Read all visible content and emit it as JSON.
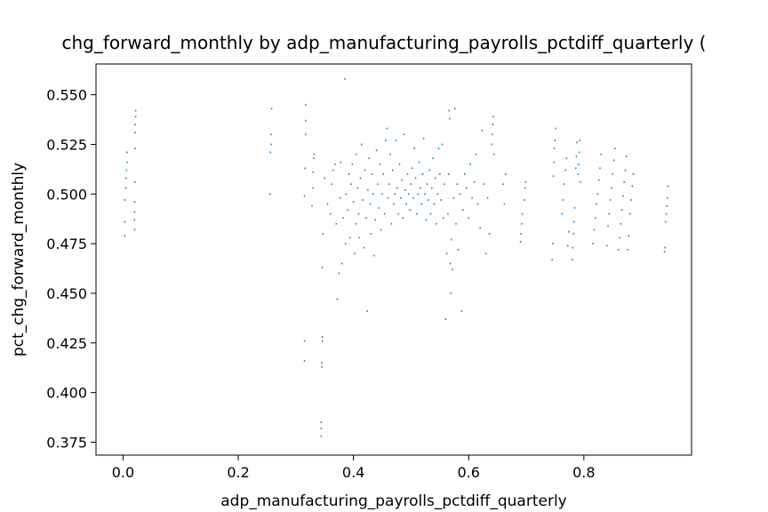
{
  "chart_data": {
    "type": "scatter",
    "title": "chg_forward_monthly by adp_manufacturing_payrolls_pctdiff_quarterly (",
    "xlabel": "adp_manufacturing_payrolls_pctdiff_quarterly",
    "ylabel": "pct_chg_forward_monthly",
    "xlim": [
      -0.047,
      0.987
    ],
    "ylim": [
      0.3685,
      0.5655
    ],
    "xticks": [
      0.0,
      0.2,
      0.4,
      0.6,
      0.8
    ],
    "xtick_labels": [
      "0.0",
      "0.2",
      "0.4",
      "0.6",
      "0.8"
    ],
    "yticks": [
      0.375,
      0.4,
      0.425,
      0.45,
      0.475,
      0.5,
      0.525,
      0.55
    ],
    "ytick_labels": [
      "0.375",
      "0.400",
      "0.425",
      "0.450",
      "0.475",
      "0.500",
      "0.525",
      "0.550"
    ],
    "grid": false,
    "marker_color": "#1f77b4",
    "points": [
      [
        0.003,
        0.479
      ],
      [
        0.003,
        0.486
      ],
      [
        0.003,
        0.497
      ],
      [
        0.005,
        0.503
      ],
      [
        0.005,
        0.508
      ],
      [
        0.006,
        0.512
      ],
      [
        0.007,
        0.516
      ],
      [
        0.007,
        0.521
      ],
      [
        0.02,
        0.482
      ],
      [
        0.02,
        0.487
      ],
      [
        0.02,
        0.491
      ],
      [
        0.02,
        0.496
      ],
      [
        0.021,
        0.506
      ],
      [
        0.021,
        0.523
      ],
      [
        0.021,
        0.531
      ],
      [
        0.021,
        0.535
      ],
      [
        0.022,
        0.539
      ],
      [
        0.022,
        0.542
      ],
      [
        0.255,
        0.5
      ],
      [
        0.256,
        0.521
      ],
      [
        0.257,
        0.525
      ],
      [
        0.257,
        0.53
      ],
      [
        0.258,
        0.543
      ],
      [
        0.315,
        0.416
      ],
      [
        0.315,
        0.426
      ],
      [
        0.315,
        0.499
      ],
      [
        0.316,
        0.513
      ],
      [
        0.317,
        0.53
      ],
      [
        0.317,
        0.537
      ],
      [
        0.317,
        0.545
      ],
      [
        0.328,
        0.494
      ],
      [
        0.33,
        0.503
      ],
      [
        0.33,
        0.511
      ],
      [
        0.331,
        0.518
      ],
      [
        0.332,
        0.52
      ],
      [
        0.344,
        0.378
      ],
      [
        0.344,
        0.382
      ],
      [
        0.344,
        0.385
      ],
      [
        0.345,
        0.413
      ],
      [
        0.345,
        0.415
      ],
      [
        0.346,
        0.426
      ],
      [
        0.346,
        0.428
      ],
      [
        0.346,
        0.463
      ],
      [
        0.347,
        0.48
      ],
      [
        0.35,
        0.508
      ],
      [
        0.355,
        0.495
      ],
      [
        0.36,
        0.49
      ],
      [
        0.362,
        0.505
      ],
      [
        0.365,
        0.512
      ],
      [
        0.368,
        0.515
      ],
      [
        0.37,
        0.485
      ],
      [
        0.372,
        0.447
      ],
      [
        0.375,
        0.46
      ],
      [
        0.377,
        0.498
      ],
      [
        0.378,
        0.516
      ],
      [
        0.38,
        0.465
      ],
      [
        0.382,
        0.488
      ],
      [
        0.385,
        0.558
      ],
      [
        0.386,
        0.475
      ],
      [
        0.387,
        0.5
      ],
      [
        0.39,
        0.492
      ],
      [
        0.392,
        0.51
      ],
      [
        0.394,
        0.478
      ],
      [
        0.396,
        0.505
      ],
      [
        0.398,
        0.515
      ],
      [
        0.4,
        0.496
      ],
      [
        0.402,
        0.47
      ],
      [
        0.404,
        0.485
      ],
      [
        0.405,
        0.52
      ],
      [
        0.407,
        0.503
      ],
      [
        0.409,
        0.49
      ],
      [
        0.41,
        0.478
      ],
      [
        0.412,
        0.508
      ],
      [
        0.414,
        0.525
      ],
      [
        0.416,
        0.497
      ],
      [
        0.418,
        0.473
      ],
      [
        0.42,
        0.512
      ],
      [
        0.422,
        0.488
      ],
      [
        0.424,
        0.441
      ],
      [
        0.425,
        0.502
      ],
      [
        0.427,
        0.518
      ],
      [
        0.429,
        0.495
      ],
      [
        0.43,
        0.48
      ],
      [
        0.432,
        0.51
      ],
      [
        0.434,
        0.5
      ],
      [
        0.436,
        0.469
      ],
      [
        0.438,
        0.487
      ],
      [
        0.44,
        0.522
      ],
      [
        0.442,
        0.505
      ],
      [
        0.444,
        0.493
      ],
      [
        0.446,
        0.515
      ],
      [
        0.448,
        0.482
      ],
      [
        0.45,
        0.5
      ],
      [
        0.452,
        0.51
      ],
      [
        0.454,
        0.49
      ],
      [
        0.456,
        0.527
      ],
      [
        0.458,
        0.533
      ],
      [
        0.46,
        0.498
      ],
      [
        0.462,
        0.505
      ],
      [
        0.464,
        0.52
      ],
      [
        0.466,
        0.485
      ],
      [
        0.468,
        0.512
      ],
      [
        0.47,
        0.495
      ],
      [
        0.472,
        0.5
      ],
      [
        0.474,
        0.527
      ],
      [
        0.476,
        0.503
      ],
      [
        0.478,
        0.49
      ],
      [
        0.48,
        0.515
      ],
      [
        0.482,
        0.498
      ],
      [
        0.484,
        0.507
      ],
      [
        0.486,
        0.488
      ],
      [
        0.488,
        0.53
      ],
      [
        0.49,
        0.502
      ],
      [
        0.492,
        0.495
      ],
      [
        0.494,
        0.51
      ],
      [
        0.496,
        0.5
      ],
      [
        0.498,
        0.492
      ],
      [
        0.5,
        0.505
      ],
      [
        0.502,
        0.513
      ],
      [
        0.504,
        0.498
      ],
      [
        0.506,
        0.523
      ],
      [
        0.508,
        0.508
      ],
      [
        0.51,
        0.49
      ],
      [
        0.512,
        0.5
      ],
      [
        0.514,
        0.516
      ],
      [
        0.516,
        0.503
      ],
      [
        0.518,
        0.495
      ],
      [
        0.52,
        0.51
      ],
      [
        0.522,
        0.528
      ],
      [
        0.524,
        0.5
      ],
      [
        0.526,
        0.487
      ],
      [
        0.528,
        0.505
      ],
      [
        0.53,
        0.497
      ],
      [
        0.532,
        0.512
      ],
      [
        0.534,
        0.49
      ],
      [
        0.536,
        0.503
      ],
      [
        0.538,
        0.518
      ],
      [
        0.54,
        0.495
      ],
      [
        0.542,
        0.508
      ],
      [
        0.544,
        0.485
      ],
      [
        0.546,
        0.5
      ],
      [
        0.548,
        0.523
      ],
      [
        0.55,
        0.51
      ],
      [
        0.552,
        0.497
      ],
      [
        0.554,
        0.525
      ],
      [
        0.556,
        0.488
      ],
      [
        0.558,
        0.505
      ],
      [
        0.56,
        0.437
      ],
      [
        0.562,
        0.47
      ],
      [
        0.564,
        0.49
      ],
      [
        0.565,
        0.51
      ],
      [
        0.566,
        0.542
      ],
      [
        0.567,
        0.538
      ],
      [
        0.568,
        0.465
      ],
      [
        0.569,
        0.45
      ],
      [
        0.57,
        0.477
      ],
      [
        0.572,
        0.462
      ],
      [
        0.574,
        0.498
      ],
      [
        0.576,
        0.543
      ],
      [
        0.578,
        0.485
      ],
      [
        0.58,
        0.505
      ],
      [
        0.582,
        0.472
      ],
      [
        0.585,
        0.5
      ],
      [
        0.588,
        0.441
      ],
      [
        0.59,
        0.492
      ],
      [
        0.593,
        0.51
      ],
      [
        0.596,
        0.503
      ],
      [
        0.6,
        0.488
      ],
      [
        0.603,
        0.515
      ],
      [
        0.606,
        0.498
      ],
      [
        0.61,
        0.506
      ],
      [
        0.613,
        0.52
      ],
      [
        0.616,
        0.495
      ],
      [
        0.62,
        0.483
      ],
      [
        0.623,
        0.532
      ],
      [
        0.626,
        0.505
      ],
      [
        0.63,
        0.47
      ],
      [
        0.633,
        0.498
      ],
      [
        0.636,
        0.48
      ],
      [
        0.64,
        0.525
      ],
      [
        0.641,
        0.53
      ],
      [
        0.642,
        0.535
      ],
      [
        0.643,
        0.539
      ],
      [
        0.644,
        0.52
      ],
      [
        0.66,
        0.505
      ],
      [
        0.662,
        0.495
      ],
      [
        0.664,
        0.51
      ],
      [
        0.69,
        0.476
      ],
      [
        0.691,
        0.48
      ],
      [
        0.692,
        0.485
      ],
      [
        0.693,
        0.49
      ],
      [
        0.697,
        0.497
      ],
      [
        0.698,
        0.503
      ],
      [
        0.699,
        0.506
      ],
      [
        0.745,
        0.467
      ],
      [
        0.746,
        0.475
      ],
      [
        0.747,
        0.509
      ],
      [
        0.748,
        0.516
      ],
      [
        0.749,
        0.523
      ],
      [
        0.75,
        0.527
      ],
      [
        0.751,
        0.533
      ],
      [
        0.762,
        0.49
      ],
      [
        0.764,
        0.497
      ],
      [
        0.766,
        0.505
      ],
      [
        0.768,
        0.512
      ],
      [
        0.77,
        0.518
      ],
      [
        0.772,
        0.474
      ],
      [
        0.774,
        0.481
      ],
      [
        0.78,
        0.467
      ],
      [
        0.781,
        0.473
      ],
      [
        0.782,
        0.48
      ],
      [
        0.783,
        0.486
      ],
      [
        0.784,
        0.493
      ],
      [
        0.786,
        0.513
      ],
      [
        0.787,
        0.519
      ],
      [
        0.788,
        0.526
      ],
      [
        0.79,
        0.51
      ],
      [
        0.791,
        0.515
      ],
      [
        0.792,
        0.521
      ],
      [
        0.793,
        0.527
      ],
      [
        0.794,
        0.506
      ],
      [
        0.816,
        0.475
      ],
      [
        0.818,
        0.482
      ],
      [
        0.82,
        0.488
      ],
      [
        0.822,
        0.495
      ],
      [
        0.824,
        0.5
      ],
      [
        0.826,
        0.507
      ],
      [
        0.828,
        0.513
      ],
      [
        0.83,
        0.52
      ],
      [
        0.84,
        0.474
      ],
      [
        0.842,
        0.484
      ],
      [
        0.844,
        0.49
      ],
      [
        0.846,
        0.497
      ],
      [
        0.848,
        0.503
      ],
      [
        0.85,
        0.51
      ],
      [
        0.852,
        0.517
      ],
      [
        0.854,
        0.523
      ],
      [
        0.86,
        0.472
      ],
      [
        0.862,
        0.478
      ],
      [
        0.864,
        0.485
      ],
      [
        0.866,
        0.492
      ],
      [
        0.868,
        0.499
      ],
      [
        0.87,
        0.506
      ],
      [
        0.872,
        0.512
      ],
      [
        0.874,
        0.519
      ],
      [
        0.876,
        0.472
      ],
      [
        0.878,
        0.479
      ],
      [
        0.88,
        0.49
      ],
      [
        0.882,
        0.497
      ],
      [
        0.884,
        0.504
      ],
      [
        0.886,
        0.51
      ],
      [
        0.94,
        0.471
      ],
      [
        0.941,
        0.473
      ],
      [
        0.942,
        0.486
      ],
      [
        0.943,
        0.49
      ],
      [
        0.944,
        0.494
      ],
      [
        0.945,
        0.498
      ],
      [
        0.946,
        0.504
      ]
    ]
  }
}
